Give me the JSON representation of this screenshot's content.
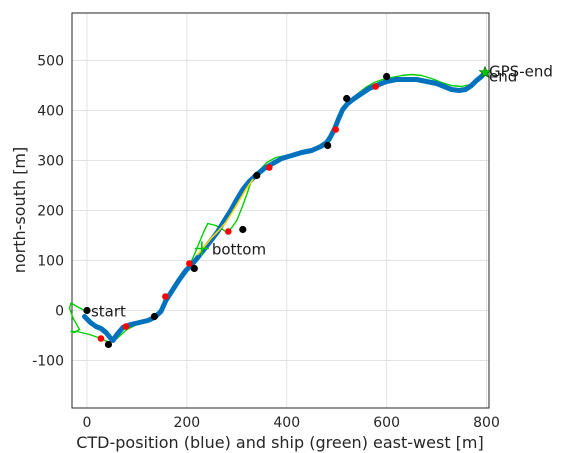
{
  "chart_data": {
    "type": "line",
    "title": "",
    "xlabel": "CTD-position (blue) and ship (green) east-west [m]",
    "ylabel": "north-south [m]",
    "xlim": [
      -30,
      805
    ],
    "ylim": [
      -195,
      595
    ],
    "xticks": [
      0,
      200,
      400,
      600,
      800
    ],
    "yticks": [
      -100,
      0,
      100,
      200,
      300,
      400,
      500
    ],
    "grid": true,
    "series": [
      {
        "color": "#0072BD",
        "points": [
          [
            -5,
            -12
          ],
          [
            8,
            -25
          ],
          [
            18,
            -32
          ],
          [
            28,
            -36
          ],
          [
            38,
            -44
          ],
          [
            46,
            -54
          ],
          [
            52,
            -60
          ],
          [
            60,
            -48
          ],
          [
            72,
            -34
          ],
          [
            88,
            -28
          ],
          [
            105,
            -24
          ],
          [
            122,
            -20
          ],
          [
            135,
            -14
          ],
          [
            148,
            -2
          ],
          [
            158,
            20
          ],
          [
            172,
            42
          ],
          [
            185,
            62
          ],
          [
            198,
            80
          ],
          [
            210,
            92
          ],
          [
            222,
            106
          ],
          [
            236,
            124
          ],
          [
            250,
            142
          ],
          [
            262,
            158
          ],
          [
            274,
            178
          ],
          [
            288,
            200
          ],
          [
            300,
            222
          ],
          [
            312,
            242
          ],
          [
            325,
            258
          ],
          [
            340,
            272
          ],
          [
            355,
            284
          ],
          [
            372,
            294
          ],
          [
            390,
            304
          ],
          [
            410,
            310
          ],
          [
            430,
            316
          ],
          [
            450,
            320
          ],
          [
            468,
            328
          ],
          [
            480,
            336
          ],
          [
            488,
            348
          ],
          [
            496,
            364
          ],
          [
            504,
            384
          ],
          [
            512,
            402
          ],
          [
            522,
            414
          ],
          [
            535,
            424
          ],
          [
            550,
            434
          ],
          [
            565,
            444
          ],
          [
            580,
            450
          ],
          [
            600,
            458
          ],
          [
            620,
            462
          ],
          [
            640,
            462
          ],
          [
            660,
            462
          ],
          [
            680,
            458
          ],
          [
            700,
            454
          ],
          [
            715,
            448
          ],
          [
            730,
            442
          ],
          [
            745,
            440
          ],
          [
            758,
            442
          ],
          [
            770,
            450
          ],
          [
            780,
            460
          ],
          [
            790,
            468
          ],
          [
            797,
            476
          ]
        ]
      },
      {
        "color": "#00D000",
        "points": [
          [
            -5,
            0
          ],
          [
            -20,
            8
          ],
          [
            -32,
            15
          ],
          [
            -35,
            5
          ],
          [
            -28,
            -15
          ],
          [
            -15,
            -38
          ],
          [
            -25,
            -44
          ],
          [
            -32,
            -42
          ],
          [
            -20,
            -42
          ],
          [
            5,
            -48
          ],
          [
            25,
            -55
          ],
          [
            45,
            -64
          ],
          [
            60,
            -56
          ],
          [
            80,
            -38
          ],
          [
            100,
            -28
          ],
          [
            118,
            -20
          ],
          [
            134,
            -14
          ],
          [
            145,
            -8
          ],
          [
            155,
            18
          ],
          [
            168,
            36
          ],
          [
            180,
            52
          ],
          [
            192,
            72
          ],
          [
            204,
            88
          ],
          [
            215,
            112
          ],
          [
            225,
            136
          ],
          [
            235,
            160
          ],
          [
            242,
            174
          ],
          [
            258,
            170
          ],
          [
            272,
            162
          ],
          [
            280,
            156
          ],
          [
            290,
            166
          ],
          [
            300,
            180
          ],
          [
            312,
            210
          ],
          [
            322,
            238
          ],
          [
            330,
            262
          ],
          [
            345,
            280
          ],
          [
            360,
            296
          ],
          [
            378,
            306
          ],
          [
            398,
            310
          ],
          [
            420,
            313
          ],
          [
            445,
            318
          ],
          [
            465,
            326
          ],
          [
            478,
            332
          ],
          [
            488,
            340
          ],
          [
            496,
            358
          ],
          [
            504,
            378
          ],
          [
            512,
            398
          ],
          [
            524,
            418
          ],
          [
            540,
            432
          ],
          [
            558,
            446
          ],
          [
            575,
            456
          ],
          [
            592,
            462
          ],
          [
            610,
            466
          ],
          [
            630,
            470
          ],
          [
            650,
            472
          ],
          [
            670,
            470
          ],
          [
            690,
            464
          ],
          [
            710,
            456
          ],
          [
            730,
            450
          ],
          [
            750,
            448
          ],
          [
            768,
            452
          ],
          [
            782,
            462
          ],
          [
            792,
            472
          ],
          [
            800,
            480
          ]
        ]
      },
      {
        "color": "#FFD700",
        "points": [
          [
            222,
            112
          ],
          [
            235,
            128
          ],
          [
            250,
            146
          ],
          [
            264,
            160
          ],
          [
            278,
            176
          ],
          [
            292,
            198
          ],
          [
            305,
            220
          ],
          [
            318,
            242
          ],
          [
            332,
            262
          ]
        ]
      }
    ],
    "markers": {
      "black": [
        [
          0,
          0
        ],
        [
          43,
          -68
        ],
        [
          135,
          -12
        ],
        [
          215,
          84
        ],
        [
          312,
          162
        ],
        [
          340,
          270
        ],
        [
          482,
          330
        ],
        [
          520,
          424
        ],
        [
          600,
          468
        ]
      ],
      "red": [
        [
          28,
          -56
        ],
        [
          78,
          -32
        ],
        [
          157,
          28
        ],
        [
          205,
          94
        ],
        [
          283,
          158
        ],
        [
          365,
          286
        ],
        [
          498,
          362
        ],
        [
          578,
          448
        ]
      ],
      "green_star": [
        [
          797,
          476
        ]
      ],
      "green_cross": [
        [
          230,
          124
        ]
      ]
    },
    "annotations": [
      {
        "text": "start",
        "x": 8,
        "y": -2
      },
      {
        "text": "bottom",
        "x": 250,
        "y": 122
      },
      {
        "text": "end",
        "x": 805,
        "y": 468
      },
      {
        "text": "GPS-end",
        "x": 805,
        "y": 478
      }
    ]
  }
}
